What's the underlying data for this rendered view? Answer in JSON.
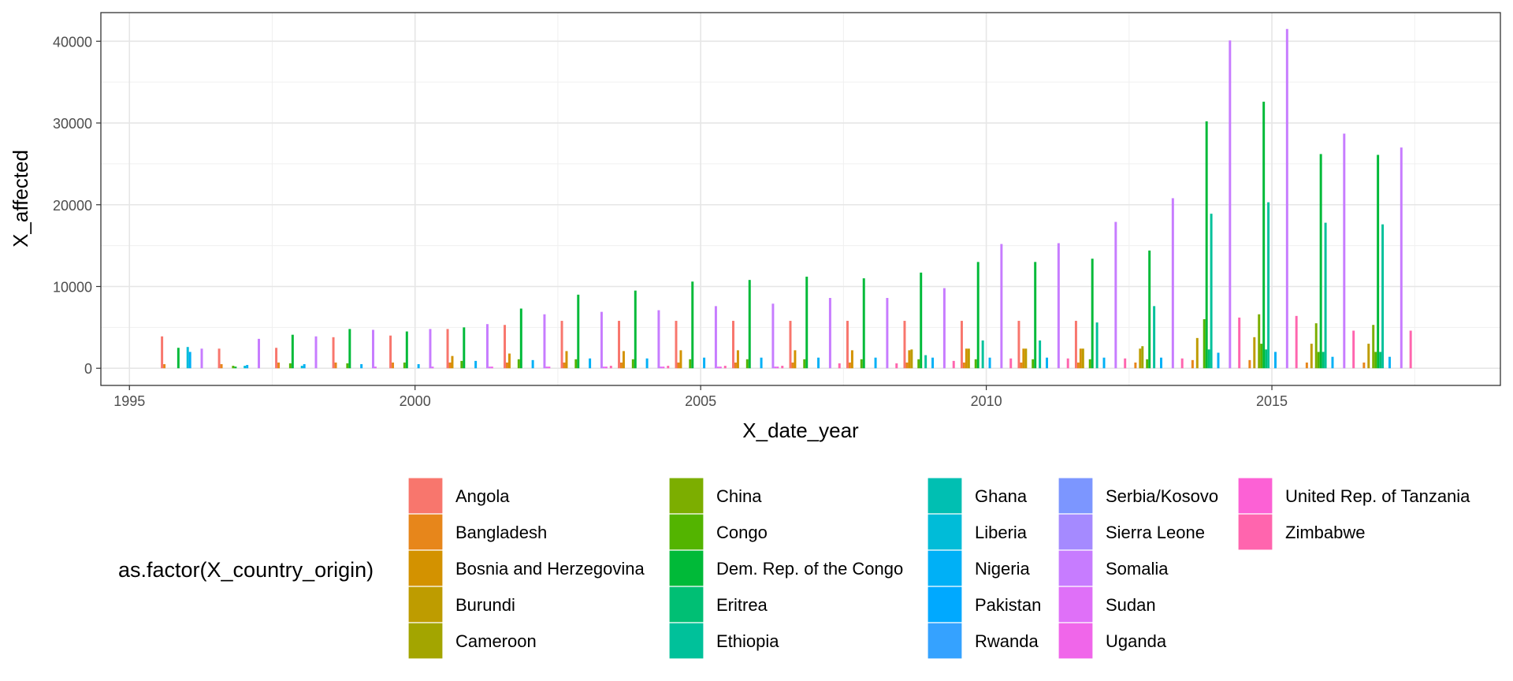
{
  "chart_data": {
    "type": "bar",
    "xlabel": "X_date_year",
    "ylabel": "X_affected",
    "xlim": [
      1994.5,
      2019.0
    ],
    "ylim": [
      -2100,
      43500
    ],
    "x_ticks": [
      1995,
      2000,
      2005,
      2010,
      2015
    ],
    "x_tick_labels": [
      "1995",
      "2000",
      "2005",
      "2010",
      "2015"
    ],
    "y_ticks": [
      0,
      10000,
      20000,
      30000,
      40000
    ],
    "y_tick_labels": [
      "0",
      "10000",
      "20000",
      "30000",
      "40000"
    ],
    "grid": true,
    "legend_title": "as.factor(X_country_origin)",
    "legend_position": "bottom",
    "years": [
      1996,
      1997,
      1998,
      1999,
      2000,
      2001,
      2002,
      2003,
      2004,
      2005,
      2006,
      2007,
      2008,
      2009,
      2010,
      2011,
      2012,
      2013,
      2014,
      2015,
      2016,
      2017
    ],
    "series": [
      {
        "name": "Angola",
        "color": "#F8766D",
        "values": [
          3900,
          2400,
          2500,
          3800,
          4000,
          4800,
          5300,
          5800,
          5800,
          5800,
          5800,
          5800,
          5800,
          5800,
          5800,
          5800,
          5800,
          0,
          0,
          0,
          0,
          0
        ]
      },
      {
        "name": "Bangladesh",
        "color": "#E7861B",
        "values": [
          500,
          500,
          700,
          700,
          700,
          700,
          700,
          700,
          700,
          700,
          700,
          700,
          700,
          700,
          700,
          700,
          700,
          700,
          1000,
          1000,
          700,
          700
        ]
      },
      {
        "name": "Bosnia and Herzegovina",
        "color": "#D39200",
        "values": [
          0,
          0,
          0,
          0,
          0,
          1500,
          1800,
          2100,
          2100,
          2200,
          2200,
          2200,
          2200,
          2200,
          2400,
          2400,
          2400,
          0,
          0,
          0,
          0,
          0
        ]
      },
      {
        "name": "Burundi",
        "color": "#BE9C00",
        "values": [
          0,
          0,
          0,
          0,
          0,
          0,
          0,
          0,
          0,
          0,
          0,
          0,
          0,
          2300,
          2400,
          2400,
          2400,
          2400,
          3700,
          3800,
          3000,
          3000
        ]
      },
      {
        "name": "Cameroon",
        "color": "#A3A500",
        "values": [
          0,
          0,
          0,
          0,
          0,
          0,
          0,
          0,
          0,
          0,
          0,
          0,
          0,
          0,
          0,
          0,
          0,
          2700,
          0,
          0,
          0,
          0
        ]
      },
      {
        "name": "China",
        "color": "#7CAE00",
        "values": [
          0,
          0,
          0,
          0,
          0,
          0,
          0,
          0,
          0,
          0,
          0,
          0,
          0,
          0,
          0,
          0,
          0,
          0,
          0,
          6600,
          5500,
          5300
        ]
      },
      {
        "name": "Congo",
        "color": "#53B400",
        "values": [
          0,
          300,
          600,
          600,
          700,
          900,
          1100,
          1100,
          1100,
          1100,
          1100,
          1100,
          1100,
          1100,
          1100,
          1100,
          1100,
          1100,
          6000,
          3000,
          2000,
          2000
        ]
      },
      {
        "name": "Dem. Rep. of the Congo",
        "color": "#00BA38",
        "values": [
          2500,
          200,
          4100,
          4800,
          4500,
          5000,
          7300,
          9000,
          9500,
          10600,
          10800,
          11200,
          11000,
          11700,
          13000,
          13000,
          13400,
          14400,
          30200,
          32600,
          26200,
          26100
        ]
      },
      {
        "name": "Eritrea",
        "color": "#00BF74",
        "values": [
          0,
          0,
          0,
          0,
          0,
          0,
          0,
          0,
          0,
          0,
          0,
          0,
          0,
          0,
          0,
          0,
          0,
          0,
          2300,
          2300,
          2000,
          2000
        ]
      },
      {
        "name": "Ethiopia",
        "color": "#00C19A",
        "values": [
          0,
          0,
          0,
          0,
          0,
          0,
          0,
          0,
          0,
          0,
          0,
          0,
          0,
          1600,
          3400,
          3400,
          5600,
          7600,
          18900,
          20300,
          17800,
          17600
        ]
      },
      {
        "name": "Ghana",
        "color": "#00BFB2",
        "values": [
          0,
          0,
          0,
          0,
          0,
          0,
          0,
          0,
          0,
          0,
          0,
          0,
          0,
          0,
          0,
          0,
          0,
          0,
          0,
          0,
          0,
          0
        ]
      },
      {
        "name": "Liberia",
        "color": "#00BCD8",
        "values": [
          2600,
          300,
          300,
          0,
          0,
          0,
          0,
          0,
          0,
          0,
          0,
          0,
          0,
          0,
          0,
          0,
          0,
          0,
          0,
          0,
          0,
          0
        ]
      },
      {
        "name": "Nigeria",
        "color": "#00B0F6",
        "values": [
          2000,
          400,
          500,
          500,
          500,
          900,
          1000,
          1200,
          1200,
          1300,
          1300,
          1300,
          1300,
          1300,
          1300,
          1300,
          1300,
          1300,
          1900,
          2000,
          1400,
          1400
        ]
      },
      {
        "name": "Pakistan",
        "color": "#00A9FF",
        "values": [
          0,
          0,
          0,
          0,
          0,
          0,
          0,
          0,
          0,
          0,
          0,
          0,
          0,
          0,
          0,
          0,
          0,
          0,
          0,
          0,
          0,
          0
        ]
      },
      {
        "name": "Rwanda",
        "color": "#35A2FF",
        "values": [
          0,
          0,
          0,
          0,
          0,
          0,
          0,
          0,
          0,
          0,
          0,
          0,
          0,
          0,
          0,
          0,
          0,
          0,
          0,
          0,
          0,
          0
        ]
      },
      {
        "name": "Serbia/Kosovo",
        "color": "#7C96FF",
        "values": [
          0,
          0,
          0,
          0,
          0,
          0,
          0,
          0,
          0,
          0,
          0,
          0,
          0,
          0,
          0,
          0,
          0,
          0,
          0,
          0,
          0,
          0
        ]
      },
      {
        "name": "Sierra Leone",
        "color": "#A58AFF",
        "values": [
          0,
          0,
          0,
          0,
          0,
          0,
          0,
          0,
          0,
          0,
          0,
          0,
          0,
          0,
          0,
          0,
          0,
          0,
          0,
          0,
          0,
          0
        ]
      },
      {
        "name": "Somalia",
        "color": "#C77CFF",
        "values": [
          2400,
          3600,
          3900,
          4700,
          4800,
          5400,
          6600,
          6900,
          7100,
          7600,
          7900,
          8600,
          8600,
          9800,
          15200,
          15300,
          17900,
          20800,
          40100,
          41500,
          28700,
          27000
        ]
      },
      {
        "name": "Sudan",
        "color": "#DF70F8",
        "values": [
          0,
          0,
          0,
          200,
          200,
          200,
          200,
          200,
          200,
          200,
          200,
          0,
          0,
          0,
          0,
          0,
          0,
          0,
          0,
          0,
          0,
          0
        ]
      },
      {
        "name": "Uganda",
        "color": "#F066EA",
        "values": [
          0,
          0,
          0,
          0,
          0,
          200,
          200,
          200,
          200,
          200,
          200,
          0,
          0,
          0,
          0,
          0,
          0,
          0,
          0,
          0,
          0,
          0
        ]
      },
      {
        "name": "United Rep. of Tanzania",
        "color": "#FC61D5",
        "values": [
          0,
          0,
          0,
          0,
          0,
          0,
          0,
          0,
          0,
          0,
          0,
          0,
          0,
          0,
          0,
          0,
          0,
          0,
          0,
          0,
          0,
          0
        ]
      },
      {
        "name": "Zimbabwe",
        "color": "#FF65AE",
        "values": [
          0,
          0,
          0,
          0,
          0,
          0,
          0,
          300,
          300,
          300,
          300,
          600,
          600,
          900,
          1200,
          1200,
          1200,
          1200,
          6200,
          6400,
          4600,
          4600
        ]
      }
    ]
  }
}
